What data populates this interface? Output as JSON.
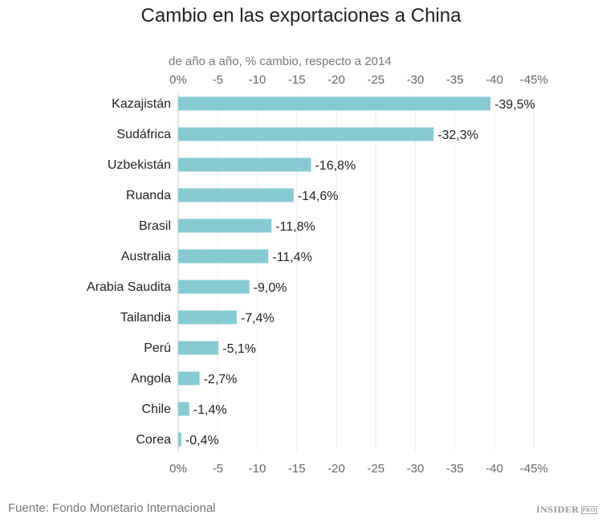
{
  "chart_data": {
    "type": "bar",
    "orientation": "horizontal",
    "title": "Cambio en las exportaciones a China",
    "subtitle": "de año a año, % cambio, respecto a 2014",
    "categories": [
      "Kazajistán",
      "Sudáfrica",
      "Uzbekistán",
      "Ruanda",
      "Brasil",
      "Australia",
      "Arabia Saudita",
      "Tailandia",
      "Perú",
      "Angola",
      "Chile",
      "Corea"
    ],
    "values": [
      -39.5,
      -32.3,
      -16.8,
      -14.6,
      -11.8,
      -11.4,
      -9.0,
      -7.4,
      -5.1,
      -2.7,
      -1.4,
      -0.4
    ],
    "data_labels": [
      "-39,5%",
      "-32,3%",
      "-16,8%",
      "-14,6%",
      "-11,8%",
      "-11,4%",
      "-9,0%",
      "-7,4%",
      "-5,1%",
      "-2,7%",
      "-1,4%",
      "-0,4%"
    ],
    "xlim": [
      0,
      -45
    ],
    "ticks": [
      0,
      -5,
      -10,
      -15,
      -20,
      -25,
      -30,
      -35,
      -40,
      -45
    ],
    "tick_labels": [
      "0%",
      "-5",
      "-10",
      "-15",
      "-20",
      "-25",
      "-30",
      "-35",
      "-40",
      "-45%"
    ],
    "axis_position": "top and bottom",
    "grid": true,
    "bar_color": "#86cbd4"
  },
  "footer": {
    "source": "Fuente: Fondo Monetario Internacional",
    "logo": "INSIDER",
    "logo_badge": "PRO"
  }
}
